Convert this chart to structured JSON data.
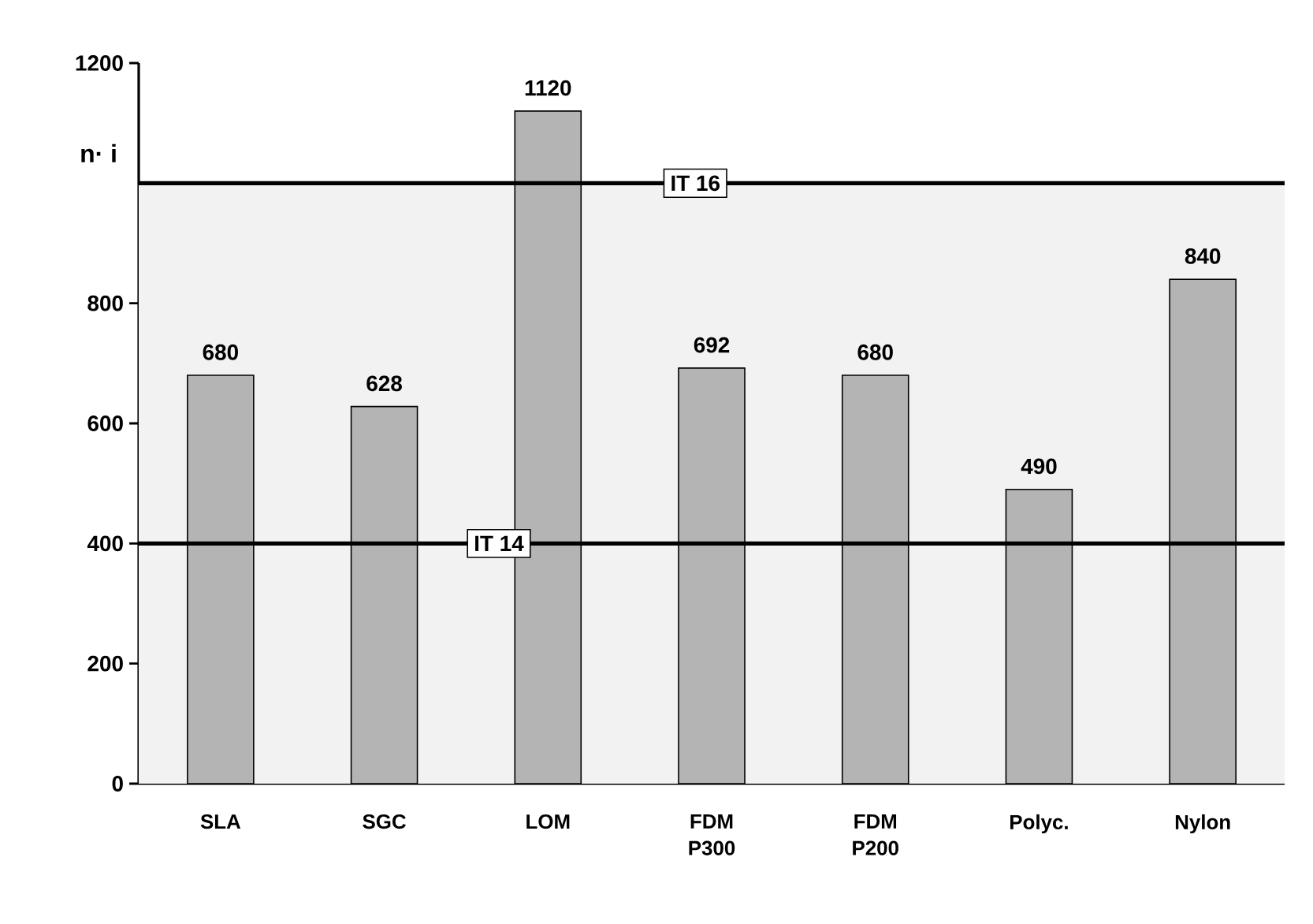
{
  "chart_data": {
    "type": "bar",
    "ylabel": "n· i",
    "categories": [
      "SLA",
      "SGC",
      "LOM",
      "FDM P300",
      "FDM P200",
      "Polyc.",
      "Nylon"
    ],
    "values": [
      680,
      628,
      1120,
      692,
      680,
      490,
      840
    ],
    "color": "#b4b4b4",
    "ylim": [
      0,
      1200
    ],
    "yticks": [
      0,
      200,
      400,
      600,
      800,
      1200
    ],
    "data_labels": true,
    "ref_lines": [
      {
        "axis": "y",
        "value": 1000,
        "label": "IT 16",
        "color": "#000000"
      },
      {
        "axis": "y",
        "value": 400,
        "label": "IT 14",
        "color": "#000000"
      }
    ],
    "bands": [
      {
        "axis": "y",
        "from": 0,
        "to": 1000,
        "color": "#f2f2f2"
      }
    ]
  }
}
